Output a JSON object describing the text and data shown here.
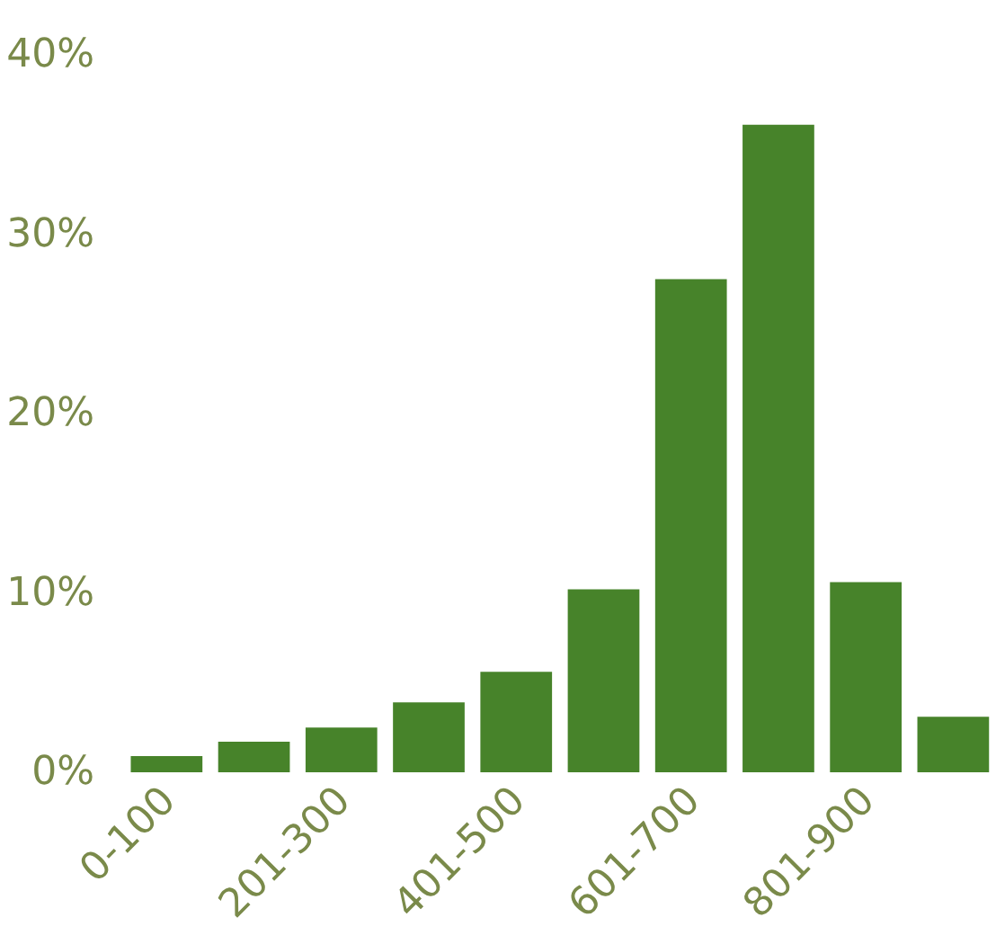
{
  "chart_data": {
    "type": "bar",
    "categories": [
      "0-100",
      null,
      "201-300",
      null,
      "401-500",
      null,
      "601-700",
      null,
      "801-900",
      null
    ],
    "values": [
      0.9,
      1.7,
      2.5,
      3.9,
      5.6,
      10.2,
      27.5,
      36.1,
      10.6,
      3.1
    ],
    "color": "#47832a",
    "ylim": [
      0,
      40
    ],
    "yticks": [
      {
        "value": 0,
        "label": "0%"
      },
      {
        "value": 10,
        "label": "10%"
      },
      {
        "value": 20,
        "label": "20%"
      },
      {
        "value": 30,
        "label": "30%"
      },
      {
        "value": 40,
        "label": "40%"
      }
    ],
    "grid": false
  }
}
